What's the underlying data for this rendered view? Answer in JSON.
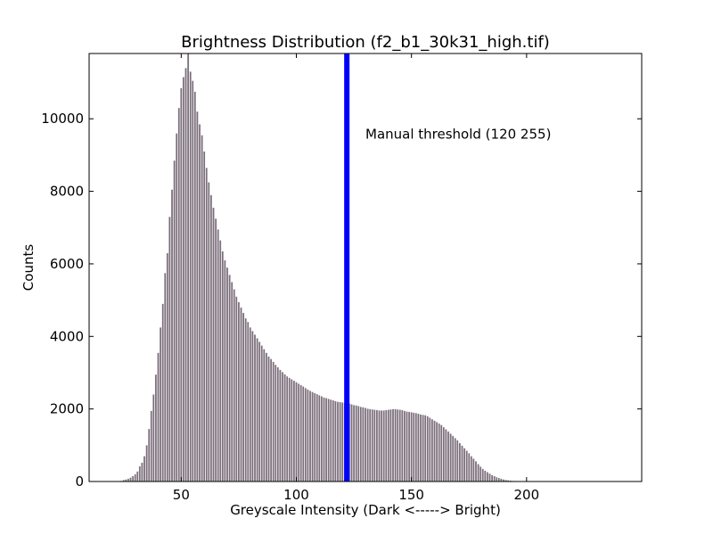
{
  "colors": {
    "bar_fill": "#7a6e7a",
    "bar_edge": "#ffffff",
    "threshold_line": "#0000ff",
    "axes": "#000000"
  },
  "chart_data": {
    "type": "bar",
    "title": "Brightness Distribution (f2_b1_30k31_high.tif)",
    "xlabel": "Greyscale Intensity (Dark <-----> Bright)",
    "ylabel": "Counts",
    "xlim": [
      10,
      250
    ],
    "ylim": [
      0,
      11800
    ],
    "xticks": [
      50,
      100,
      150,
      200
    ],
    "yticks": [
      0,
      2000,
      4000,
      6000,
      8000,
      10000
    ],
    "grid": false,
    "annotation": {
      "text": "Manual threshold (120 255)",
      "x": 130,
      "y": 9450
    },
    "threshold": {
      "x": 120
    },
    "x_start": 22,
    "values": [
      5,
      10,
      20,
      40,
      60,
      80,
      110,
      150,
      200,
      280,
      420,
      520,
      700,
      1000,
      1450,
      1950,
      2400,
      2950,
      3550,
      4250,
      4900,
      5750,
      6300,
      7300,
      8050,
      8850,
      9600,
      10300,
      10850,
      11150,
      11400,
      11800,
      11300,
      11050,
      10750,
      10200,
      9850,
      9550,
      9100,
      8650,
      8250,
      7900,
      7550,
      7250,
      6950,
      6650,
      6350,
      6100,
      5900,
      5700,
      5500,
      5300,
      5100,
      4950,
      4800,
      4650,
      4500,
      4400,
      4250,
      4150,
      4050,
      3950,
      3850,
      3750,
      3650,
      3550,
      3450,
      3380,
      3300,
      3220,
      3150,
      3080,
      3020,
      2960,
      2900,
      2860,
      2820,
      2780,
      2740,
      2700,
      2660,
      2620,
      2580,
      2540,
      2500,
      2470,
      2440,
      2410,
      2380,
      2350,
      2320,
      2300,
      2280,
      2260,
      2240,
      2220,
      2200,
      2190,
      2180,
      2170,
      2160,
      2150,
      2130,
      2110,
      2100,
      2080,
      2060,
      2050,
      2030,
      2010,
      2000,
      1990,
      1980,
      1970,
      1960,
      1960,
      1960,
      1970,
      1980,
      1990,
      2000,
      2000,
      1990,
      1980,
      1970,
      1950,
      1930,
      1920,
      1910,
      1900,
      1890,
      1870,
      1850,
      1840,
      1830,
      1800,
      1760,
      1720,
      1680,
      1640,
      1600,
      1560,
      1500,
      1440,
      1380,
      1320,
      1260,
      1200,
      1140,
      1060,
      990,
      920,
      850,
      780,
      700,
      630,
      560,
      480,
      410,
      350,
      300,
      260,
      220,
      180,
      150,
      120,
      100,
      80,
      60,
      45,
      35,
      25,
      20,
      15,
      10,
      8,
      5,
      3,
      2,
      1
    ]
  }
}
